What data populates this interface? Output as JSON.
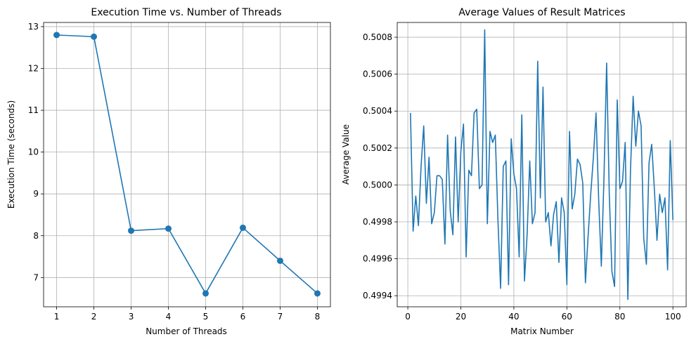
{
  "chart_data": [
    {
      "type": "line",
      "title": "Execution Time vs. Number of Threads",
      "xlabel": "Number of Threads",
      "ylabel": "Execution Time (seconds)",
      "xlim": [
        0.65,
        8.35
      ],
      "ylim": [
        6.3,
        13.1
      ],
      "xticks": [
        1,
        2,
        3,
        4,
        5,
        6,
        7,
        8
      ],
      "yticks": [
        7,
        8,
        9,
        10,
        11,
        12,
        13
      ],
      "grid": true,
      "markers": true,
      "color": "#1f77b4",
      "x": [
        1,
        2,
        3,
        4,
        5,
        6,
        7,
        8
      ],
      "y": [
        12.8,
        12.76,
        8.12,
        8.17,
        6.62,
        8.19,
        7.4,
        6.62
      ]
    },
    {
      "type": "line",
      "title": "Average Values of Result Matrices",
      "xlabel": "Matrix Number",
      "ylabel": "Average Value",
      "xlim": [
        -4,
        105
      ],
      "ylim": [
        0.49934,
        0.50088
      ],
      "xticks": [
        0,
        20,
        40,
        60,
        80,
        100
      ],
      "yticks": [
        0.4994,
        0.4996,
        0.4998,
        0.5,
        0.5002,
        0.5004,
        0.5006,
        0.5008
      ],
      "ytick_labels": [
        "0.4994",
        "0.4996",
        "0.4998",
        "0.5000",
        "0.5002",
        "0.5004",
        "0.5006",
        "0.5008"
      ],
      "grid": true,
      "markers": false,
      "color": "#1f77b4",
      "x_start": 1,
      "x_end": 100,
      "y": [
        0.50039,
        0.49975,
        0.49994,
        0.49978,
        0.5001,
        0.50032,
        0.4999,
        0.50015,
        0.49979,
        0.49985,
        0.50005,
        0.50005,
        0.50003,
        0.49968,
        0.50027,
        0.49986,
        0.49973,
        0.50026,
        0.4998,
        0.50018,
        0.50033,
        0.49961,
        0.50008,
        0.50005,
        0.50039,
        0.50041,
        0.49998,
        0.5,
        0.50084,
        0.49979,
        0.50029,
        0.50023,
        0.50027,
        0.49981,
        0.49944,
        0.5001,
        0.50013,
        0.49946,
        0.50025,
        0.50006,
        0.49998,
        0.49961,
        0.50038,
        0.49948,
        0.49973,
        0.50013,
        0.49979,
        0.49985,
        0.50067,
        0.49993,
        0.50053,
        0.4998,
        0.49985,
        0.49967,
        0.49984,
        0.49991,
        0.49958,
        0.49993,
        0.49985,
        0.49946,
        0.50029,
        0.49987,
        0.49995,
        0.50014,
        0.50011,
        0.50001,
        0.49947,
        0.49972,
        0.49995,
        0.50015,
        0.50039,
        0.49992,
        0.49956,
        0.50004,
        0.50066,
        0.49995,
        0.49953,
        0.49945,
        0.50046,
        0.49998,
        0.50002,
        0.50023,
        0.49938,
        0.50008,
        0.50048,
        0.50021,
        0.5004,
        0.50032,
        0.49971,
        0.49957,
        0.50012,
        0.50022,
        0.49998,
        0.4997,
        0.49995,
        0.49985,
        0.49993,
        0.49954,
        0.50024,
        0.49981
      ]
    }
  ]
}
